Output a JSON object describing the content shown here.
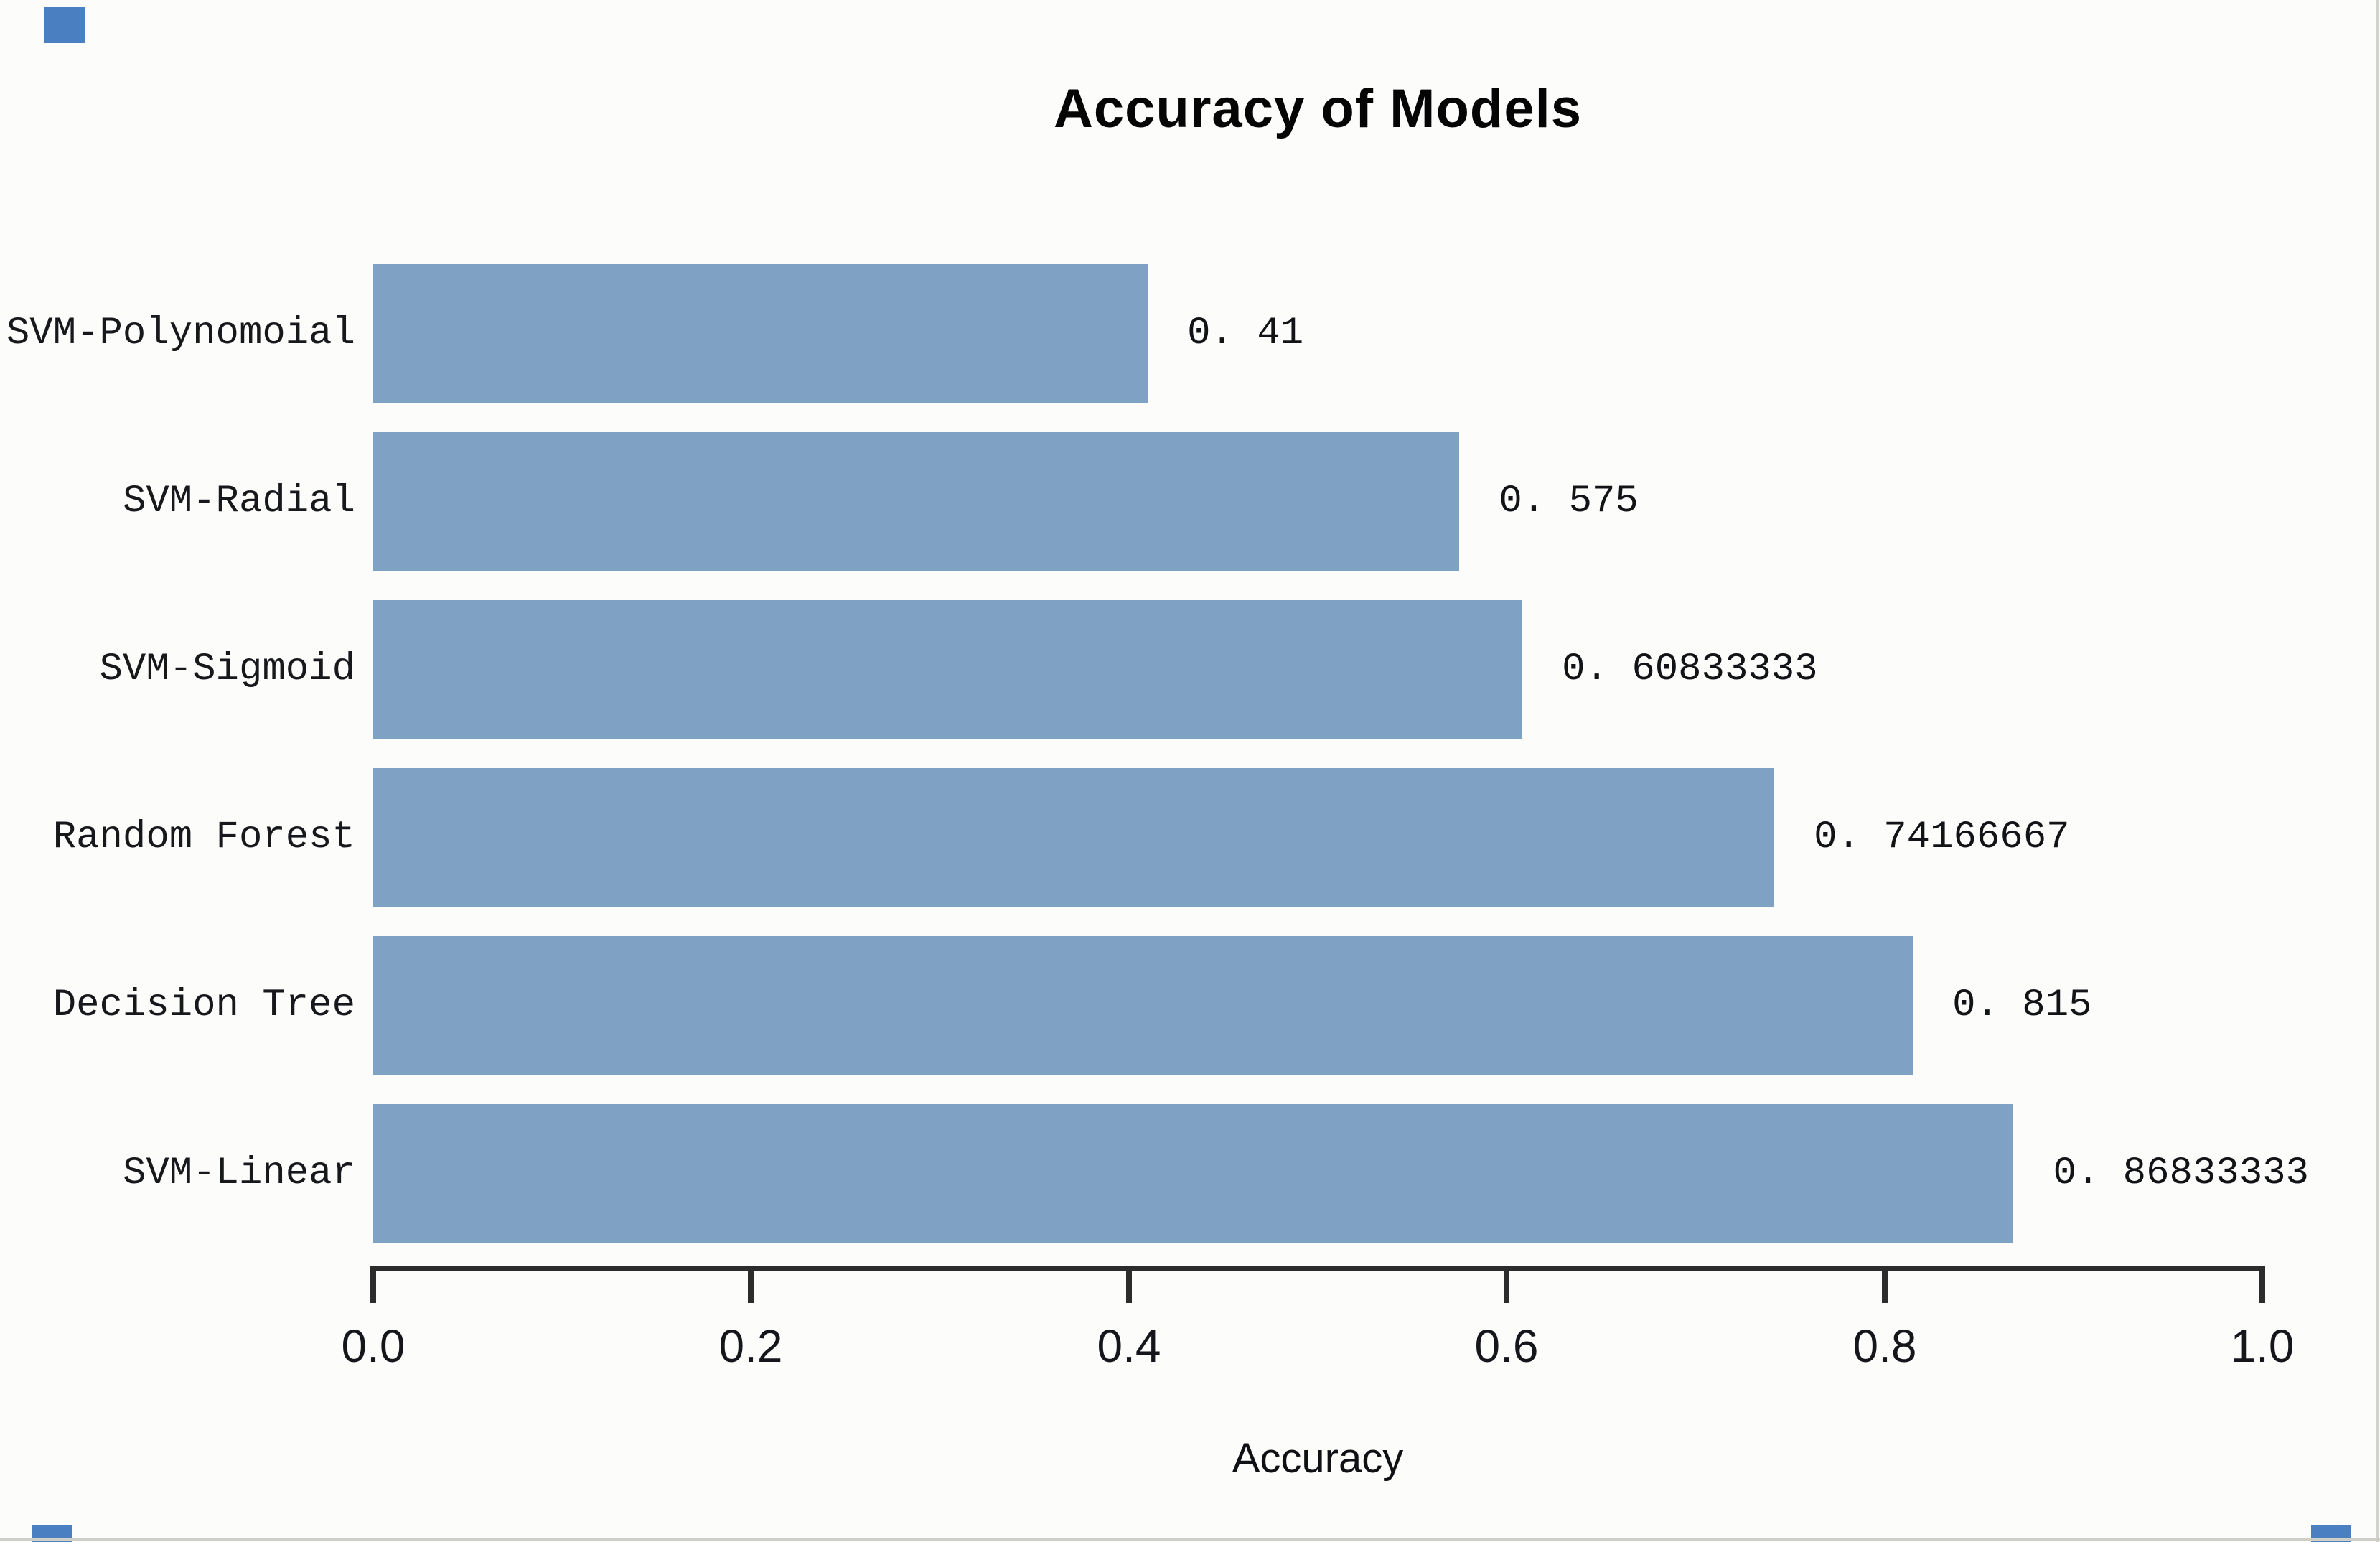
{
  "window": {
    "background": "#fcfcfb",
    "edge_color": "#d2d2cb"
  },
  "selection_handles": {
    "color": "#4a7fc1",
    "visible": [
      "top-left",
      "bottom-left",
      "bottom-right"
    ]
  },
  "chart_data": {
    "type": "bar",
    "orientation": "horizontal",
    "title": "Accuracy of Models",
    "xlabel": "Accuracy",
    "xlim": [
      0,
      1
    ],
    "x_ticks": [
      "0.0",
      "0.2",
      "0.4",
      "0.6",
      "0.8",
      "1.0"
    ],
    "grid": false,
    "legend": false,
    "bar_color": "#7ea1c4",
    "categories": [
      "SVM-Polynomoial",
      "SVM-Radial",
      "SVM-Sigmoid",
      "Random Forest",
      "Decision Tree",
      "SVM-Linear"
    ],
    "values": [
      0.41,
      0.575,
      0.60833333,
      0.74166667,
      0.815,
      0.86833333
    ],
    "value_labels": [
      "0. 41",
      "0. 575",
      "0. 60833333",
      "0. 74166667",
      "0. 815",
      "0. 86833333"
    ]
  }
}
